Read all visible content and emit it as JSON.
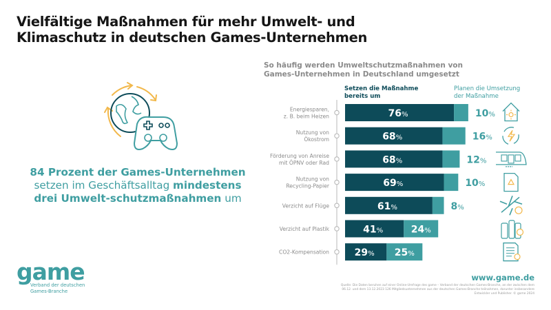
{
  "title": "Vielfältige Maßnahmen für mehr Umwelt- und Klimaschutz in deutschen Games-Unternehmen",
  "statement": {
    "part1": "84 Prozent der Games-Unternehmen",
    "part2": " setzen im Geschäftsalltag ",
    "part3": "mindestens drei Umwelt-schutzmaßnahmen",
    "part4": " um"
  },
  "hero_icon": "globe-with-gamepad-recycle-icon",
  "logo": {
    "wordmark": "game",
    "tagline_line1": "Verband der deutschen",
    "tagline_line2": "Games-Branche"
  },
  "website": "www.game.de",
  "source": "Quelle: Die Daten beruhen auf einer Online-Umfrage des game – Verband der deutschen Games-Branche, an der zwischen dem 06.12. und dem 13.12.2023 126 Mitgliedsunternehmen aus der deutschen Games-Branche teilnahmen, darunter insbesondere Entwickler und Publisher. © game 2024",
  "colors": {
    "implemented": "#0d4b59",
    "planned": "#3f9ea1",
    "accent_yellow": "#f2b84b",
    "label_gray": "#8a8a8a"
  },
  "chart_data": {
    "type": "bar",
    "orientation": "horizontal",
    "stacked": true,
    "title": "So häufig werden Umweltschutzmaßnahmen von Games-Unternehmen in Deutschland umgesetzt",
    "xlabel": "",
    "ylabel": "",
    "unit": "%",
    "xlim": [
      0,
      100
    ],
    "grid": false,
    "legend": {
      "placement": "top",
      "entries": [
        "Setzen die Maßnahme bereits um",
        "Planen die Umsetzung der Maßnahme"
      ]
    },
    "categories": [
      "Energiesparen, z. B. beim Heizen",
      "Nutzung von Ökostrom",
      "Förderung von Anreise mit ÖPNV oder Rad",
      "Nutzung von Recycling-Papier",
      "Verzicht auf Flüge",
      "Verzicht auf Plastik",
      "CO2-Kompensation"
    ],
    "category_lines": [
      [
        "Energiesparen,",
        "z. B. beim Heizen"
      ],
      [
        "Nutzung von",
        "Ökostrom"
      ],
      [
        "Förderung von Anreise",
        "mit ÖPNV oder Rad"
      ],
      [
        "Nutzung von",
        "Recycling-Papier"
      ],
      [
        "Verzicht auf Flüge"
      ],
      [
        "Verzicht auf Plastik"
      ],
      [
        "CO2-Kompensation"
      ]
    ],
    "icons": [
      "house-sun-icon",
      "green-electricity-icon",
      "train-icon",
      "recycling-paper-icon",
      "airplane-no-icon",
      "plastic-bottles-no-icon",
      "document-offset-icon"
    ],
    "series": [
      {
        "name": "Setzen die Maßnahme bereits um",
        "values": [
          76,
          68,
          68,
          69,
          61,
          41,
          29
        ]
      },
      {
        "name": "Planen die Umsetzung der Maßnahme",
        "values": [
          10,
          16,
          12,
          10,
          8,
          24,
          25
        ]
      }
    ],
    "planned_label_inside": [
      false,
      false,
      false,
      false,
      false,
      true,
      true
    ]
  }
}
